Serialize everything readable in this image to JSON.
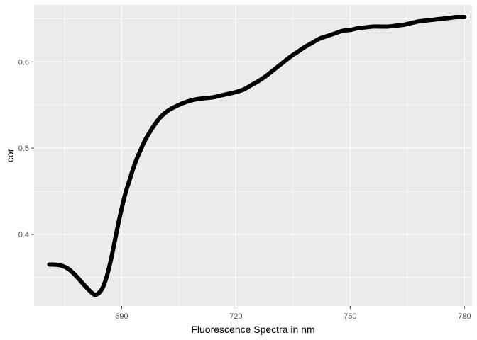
{
  "chart_data": {
    "type": "line",
    "xlabel": "Fluorescence Spectra in nm",
    "ylabel": "cor",
    "xlim": [
      667,
      782
    ],
    "ylim": [
      0.317,
      0.666
    ],
    "x_ticks": [
      690,
      720,
      750,
      780
    ],
    "y_ticks": [
      0.4,
      0.5,
      0.6
    ],
    "x_tick_labels": [
      "690",
      "720",
      "750",
      "780"
    ],
    "y_tick_labels": [
      "0.4",
      "0.5",
      "0.6"
    ],
    "grid": true,
    "colors": {
      "panel": "#ebebeb",
      "grid": "#ffffff",
      "line": "#000000"
    },
    "series": [
      {
        "x": [
          671,
          672,
          674,
          676,
          678,
          680,
          682,
          683,
          684,
          685,
          686,
          687,
          688,
          689,
          690,
          691,
          692,
          693,
          694,
          695,
          696,
          698,
          700,
          702,
          704,
          706,
          708,
          710,
          712,
          714,
          716,
          718,
          720,
          722,
          724,
          726,
          728,
          730,
          732,
          734,
          736,
          738,
          740,
          742,
          744,
          746,
          748,
          750,
          752,
          754,
          756,
          758,
          760,
          762,
          764,
          766,
          768,
          770,
          772,
          774,
          776,
          778,
          780
        ],
        "y": [
          0.365,
          0.365,
          0.364,
          0.36,
          0.352,
          0.342,
          0.333,
          0.33,
          0.332,
          0.338,
          0.35,
          0.367,
          0.388,
          0.41,
          0.43,
          0.448,
          0.462,
          0.476,
          0.488,
          0.498,
          0.508,
          0.523,
          0.535,
          0.543,
          0.548,
          0.552,
          0.555,
          0.557,
          0.558,
          0.559,
          0.561,
          0.563,
          0.565,
          0.568,
          0.573,
          0.578,
          0.584,
          0.591,
          0.598,
          0.605,
          0.611,
          0.617,
          0.622,
          0.627,
          0.63,
          0.633,
          0.636,
          0.637,
          0.639,
          0.64,
          0.641,
          0.641,
          0.641,
          0.642,
          0.643,
          0.645,
          0.647,
          0.648,
          0.649,
          0.65,
          0.651,
          0.652,
          0.652
        ]
      }
    ]
  }
}
